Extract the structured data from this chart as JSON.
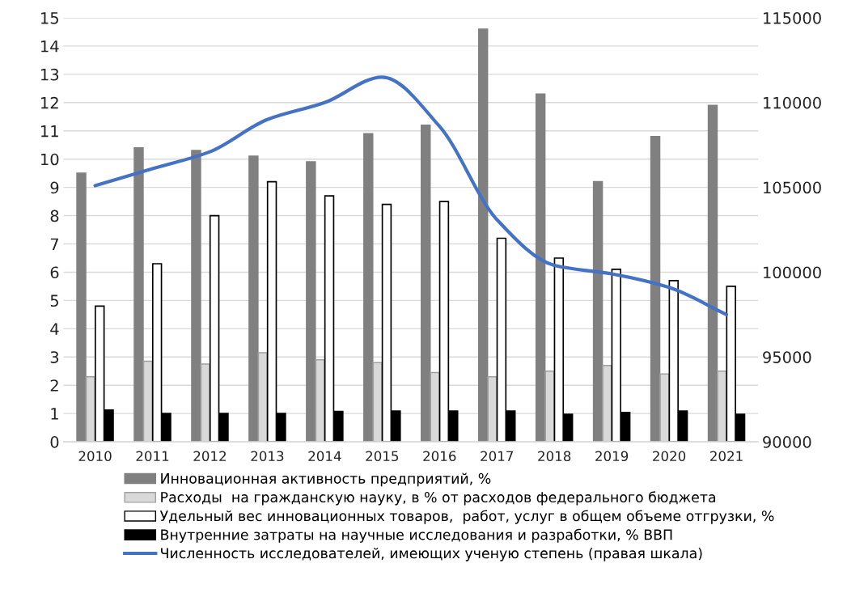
{
  "chart_data": {
    "type": "bar",
    "categories": [
      "2010",
      "2011",
      "2012",
      "2013",
      "2014",
      "2015",
      "2016",
      "2017",
      "2018",
      "2019",
      "2020",
      "2021"
    ],
    "series": [
      {
        "name": "Инновационная активность предприятий, %",
        "color": "#808080",
        "values": [
          9.5,
          10.4,
          10.3,
          10.1,
          9.9,
          10.9,
          11.2,
          14.6,
          12.3,
          9.2,
          10.8,
          11.9
        ]
      },
      {
        "name": "Расходы  на гражданскую науку, в % от расходов федерального бюджета",
        "color": "#d9d9d9",
        "values": [
          2.3,
          2.85,
          2.75,
          3.15,
          2.9,
          2.8,
          2.45,
          2.3,
          2.5,
          2.7,
          2.4,
          2.5
        ]
      },
      {
        "name": "Удельный вес инновационных товаров,  работ, услуг в общем объеме отгрузки, %",
        "color": "#ffffff",
        "values": [
          4.8,
          6.3,
          8.0,
          9.2,
          8.7,
          8.4,
          8.5,
          7.2,
          6.5,
          6.1,
          5.7,
          5.5
        ]
      },
      {
        "name": "Внутренние затраты на научные исследования и разработки, % ВВП",
        "color": "#000000",
        "values": [
          1.12,
          1.0,
          1.0,
          1.0,
          1.07,
          1.09,
          1.09,
          1.09,
          0.97,
          1.04,
          1.09,
          0.97
        ]
      },
      {
        "name": "Численность исследователей, имеющих ученую степень (правая шкала)",
        "type": "line",
        "axis": "y2",
        "color": "#4472c4",
        "values": [
          105100,
          106100,
          107100,
          109000,
          110000,
          111500,
          108600,
          103100,
          100400,
          99900,
          99100,
          97500
        ]
      }
    ],
    "ylim": [
      0,
      15
    ],
    "yticks": [
      0,
      1,
      2,
      3,
      4,
      5,
      6,
      7,
      8,
      9,
      10,
      11,
      12,
      13,
      14,
      15
    ],
    "y2lim": [
      90000,
      115000
    ],
    "y2ticks": [
      90000,
      95000,
      100000,
      105000,
      110000,
      115000
    ],
    "grid": "y",
    "legend": "bottom"
  }
}
